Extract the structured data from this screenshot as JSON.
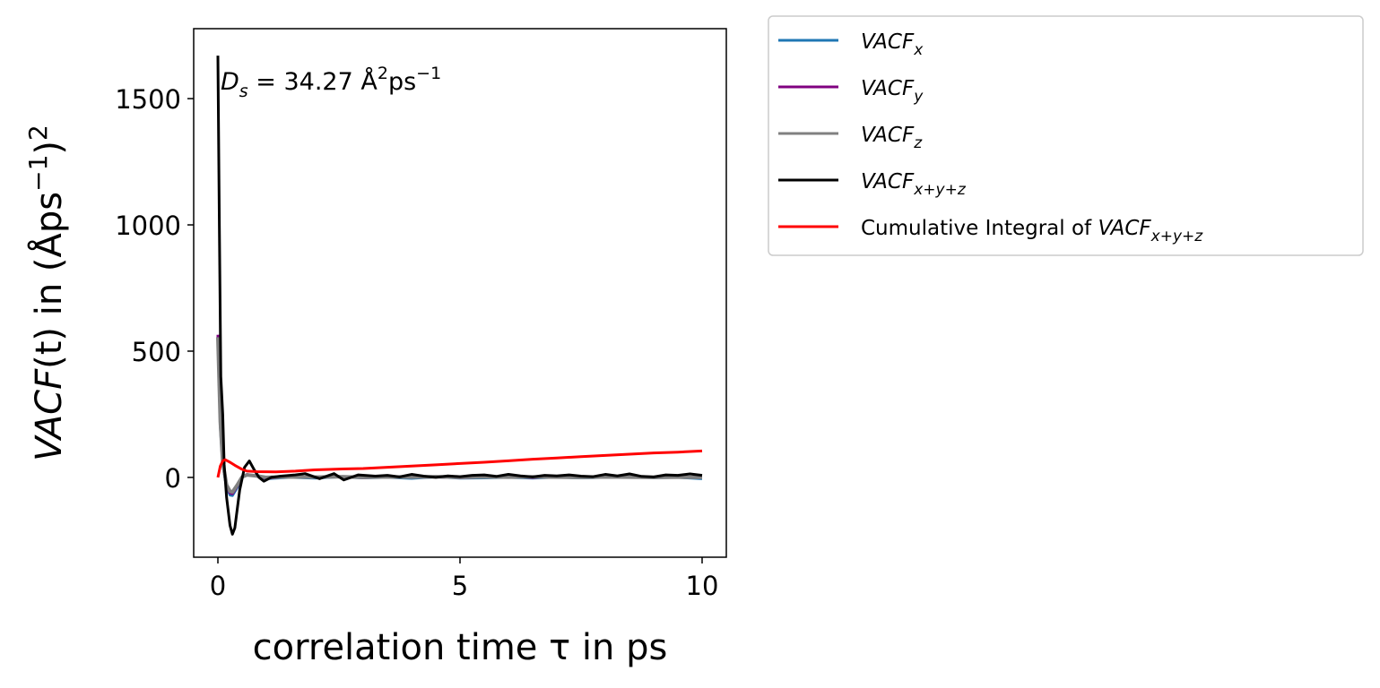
{
  "chart_data": {
    "type": "line",
    "xlabel": "correlation time τ in ps",
    "ylabel_parts": {
      "main": "VACF",
      "arg": "(t)",
      "rest": " in (Åps",
      "sup": "−1",
      "close": ")",
      "sup2": "2"
    },
    "annotation": {
      "lhs": "D",
      "sub": "s",
      "rhs": " = 34.27 Å",
      "sup1": "2",
      "unit": "ps",
      "sup2": "−1"
    },
    "xlim": [
      -0.5,
      10.5
    ],
    "ylim": [
      -316,
      1777
    ],
    "xticks": [
      0,
      5,
      10
    ],
    "xtick_labels": [
      "0",
      "5",
      "10"
    ],
    "yticks": [
      0,
      500,
      1000,
      1500
    ],
    "ytick_labels": [
      "0",
      "500",
      "1000",
      "1500"
    ],
    "grid": false,
    "legend_placement": "outside-top-right",
    "series": [
      {
        "name": "VACF_x",
        "label_main": "VACF",
        "label_sub": "x",
        "color": "#1f77b4",
        "x": [
          0,
          0.05,
          0.1,
          0.18,
          0.25,
          0.3,
          0.4,
          0.5,
          0.6,
          0.8,
          1,
          1.5,
          2,
          2.5,
          3,
          3.5,
          4,
          4.5,
          5,
          5.5,
          6,
          6.5,
          7,
          7.5,
          8,
          8.5,
          9,
          9.5,
          10
        ],
        "y": [
          560,
          200,
          50,
          -40,
          -70,
          -72,
          -40,
          0,
          10,
          5,
          -5,
          0,
          -3,
          2,
          -2,
          0,
          -4,
          2,
          -3,
          -2,
          0,
          -3,
          1,
          -2,
          0,
          2,
          -1,
          0,
          -5
        ]
      },
      {
        "name": "VACF_y",
        "label_main": "VACF",
        "label_sub": "y",
        "color": "#800080",
        "x": [
          0,
          0.05,
          0.1,
          0.18,
          0.25,
          0.3,
          0.4,
          0.5,
          0.6,
          0.8,
          1,
          1.5,
          2,
          2.5,
          3,
          3.5,
          4,
          4.5,
          5,
          5.5,
          6,
          6.5,
          7,
          7.5,
          8,
          8.5,
          9,
          9.5,
          10
        ],
        "y": [
          565,
          210,
          55,
          -35,
          -62,
          -65,
          -35,
          0,
          12,
          5,
          -3,
          2,
          0,
          3,
          -1,
          1,
          0,
          2,
          -1,
          0,
          2,
          -1,
          2,
          0,
          1,
          2,
          0,
          1,
          0
        ]
      },
      {
        "name": "VACF_z",
        "label_main": "VACF",
        "label_sub": "z",
        "color": "#808080",
        "x": [
          0,
          0.05,
          0.1,
          0.18,
          0.25,
          0.3,
          0.4,
          0.5,
          0.6,
          0.8,
          1,
          1.5,
          2,
          2.5,
          3,
          3.5,
          4,
          4.5,
          5,
          5.5,
          6,
          6.5,
          7,
          7.5,
          8,
          8.5,
          9,
          9.5,
          10
        ],
        "y": [
          555,
          220,
          60,
          -30,
          -55,
          -58,
          -30,
          2,
          10,
          6,
          0,
          2,
          1,
          3,
          0,
          2,
          1,
          3,
          0,
          2,
          1,
          2,
          1,
          0,
          2,
          1,
          0,
          1,
          0
        ]
      },
      {
        "name": "VACF_x+y+z",
        "label_main": "VACF",
        "label_sub": "x+y+z",
        "color": "#000000",
        "x": [
          0,
          0.03,
          0.06,
          0.1,
          0.13,
          0.18,
          0.25,
          0.3,
          0.35,
          0.45,
          0.55,
          0.65,
          0.75,
          0.85,
          0.95,
          1.1,
          1.3,
          1.6,
          1.8,
          2.1,
          2.4,
          2.6,
          2.9,
          3.25,
          3.5,
          3.75,
          4,
          4.25,
          4.5,
          4.75,
          5,
          5.25,
          5.5,
          5.75,
          6,
          6.25,
          6.5,
          6.75,
          7,
          7.25,
          7.5,
          7.75,
          8,
          8.25,
          8.5,
          8.75,
          9,
          9.25,
          9.5,
          9.75,
          10
        ],
        "y": [
          1670,
          1000,
          400,
          250,
          50,
          -80,
          -190,
          -225,
          -200,
          -50,
          40,
          65,
          30,
          0,
          -15,
          0,
          5,
          10,
          15,
          -5,
          15,
          -10,
          10,
          5,
          8,
          2,
          12,
          5,
          0,
          6,
          3,
          8,
          10,
          4,
          12,
          6,
          2,
          8,
          6,
          10,
          5,
          3,
          12,
          6,
          14,
          4,
          2,
          10,
          8,
          14,
          8
        ]
      },
      {
        "name": "Cumulative Integral of VACF_x+y+z",
        "label_main": "Cumulative Integral of ",
        "label_it": "VACF",
        "label_sub": "x+y+z",
        "color": "#ff0000",
        "x": [
          0,
          0.05,
          0.1,
          0.15,
          0.25,
          0.35,
          0.5,
          0.6,
          0.8,
          1.2,
          1.6,
          2,
          2.5,
          3,
          3.5,
          4,
          4.5,
          5,
          5.5,
          6,
          6.5,
          7,
          7.5,
          8,
          8.5,
          9,
          9.5,
          10
        ],
        "y": [
          0,
          45,
          65,
          70,
          60,
          48,
          32,
          25,
          23,
          22,
          25,
          30,
          33,
          35,
          40,
          45,
          50,
          55,
          60,
          66,
          72,
          77,
          82,
          87,
          92,
          97,
          100,
          105
        ]
      }
    ]
  }
}
